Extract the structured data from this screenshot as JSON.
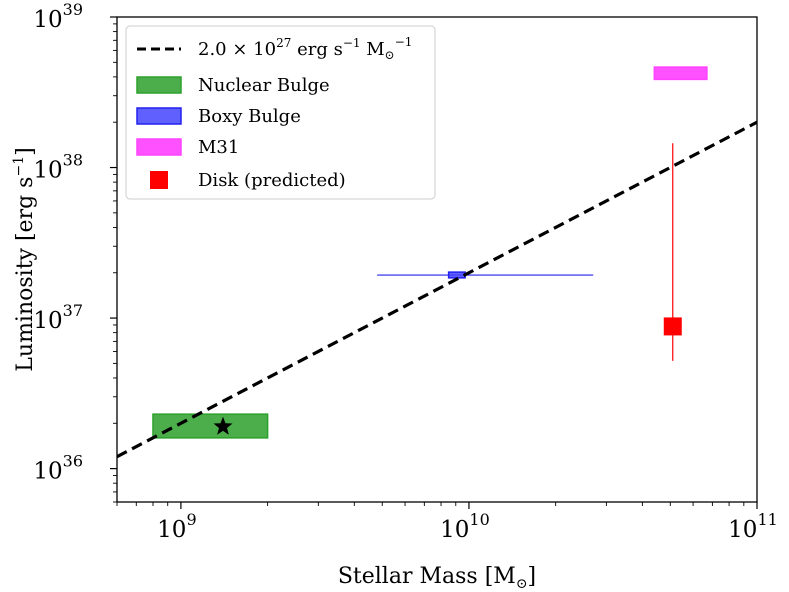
{
  "chart_data": {
    "type": "scatter",
    "scale": {
      "x": "log",
      "y": "log"
    },
    "x": {
      "label_text": "Stellar Mass [M",
      "label_unit": "⊙",
      "label_close": "]",
      "range": [
        600000000.0,
        100000000000.0
      ],
      "ticks": [
        {
          "value": 1000000000.0,
          "base": "10",
          "exp": "9"
        },
        {
          "value": 10000000000.0,
          "base": "10",
          "exp": "10"
        },
        {
          "value": 100000000000.0,
          "base": "10",
          "exp": "11"
        }
      ]
    },
    "y": {
      "label_prefix": "Luminosity [erg s",
      "label_exp": "−1",
      "label_suffix": "]",
      "range": [
        6e+35,
        1e+39
      ],
      "ticks": [
        {
          "value": 1e+36,
          "base": "10",
          "exp": "36"
        },
        {
          "value": 1e+37,
          "base": "10",
          "exp": "37"
        },
        {
          "value": 1e+38,
          "base": "10",
          "exp": "38"
        },
        {
          "value": 1e+39,
          "base": "10",
          "exp": "39"
        }
      ]
    },
    "relation": {
      "coefficient": 2e+27,
      "legend": {
        "coef": "2.0 × 10",
        "coef_exp": "27",
        "unit": " erg s",
        "unit_exp": "−1",
        "mass": " M",
        "mass_sub": "⊙",
        "mass_exp": "−1"
      },
      "color": "#000000"
    },
    "regions": [
      {
        "name": "Nuclear Bulge",
        "x_range": [
          800000000.0,
          2000000000.0
        ],
        "y_range": [
          1.6e+36,
          2.3e+36
        ],
        "fill": "#2ca02c",
        "edge": "#2ca02c",
        "star": {
          "x": 1400000000.0,
          "y": 1.9e+36
        }
      },
      {
        "name": "Boxy Bulge",
        "x_range": [
          8500000000.0,
          9700000000.0
        ],
        "y_range": [
          1.85e+37,
          2.02e+37
        ],
        "fill": "#4444ff",
        "edge": "#2222ee",
        "x_err": [
          4800000000.0,
          27000000000.0
        ],
        "y_err_at": 1.93e+37
      },
      {
        "name": "M31",
        "x_range": [
          44000000000.0,
          67000000000.0
        ],
        "y_range": [
          3.85e+38,
          4.65e+38
        ],
        "fill": "#ff33ff",
        "edge": "#ff44ff"
      }
    ],
    "points": [
      {
        "name": "Disk (predicted)",
        "x": 51000000000.0,
        "y": 8.8e+36,
        "y_err": [
          5.2e+36,
          1.45e+38
        ],
        "color": "#ff0000"
      }
    ],
    "legend_placement": "top-left"
  }
}
